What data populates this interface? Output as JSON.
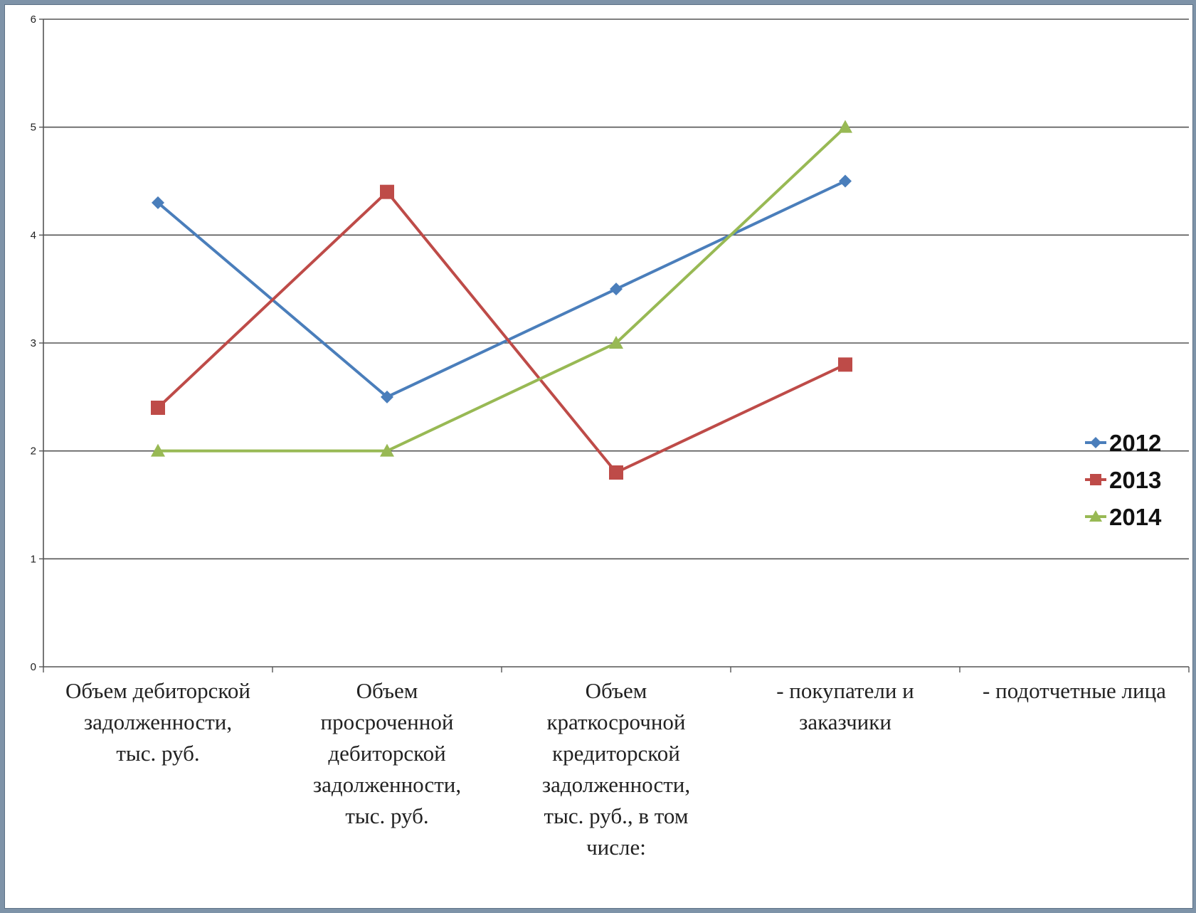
{
  "chart_data": {
    "type": "line",
    "categories": [
      [
        "Объем дебиторской",
        "задолженности,",
        "тыс. руб."
      ],
      [
        "Объем",
        "просроченной",
        "дебиторской",
        "задолженности,",
        "тыс. руб."
      ],
      [
        "Объем",
        "краткосрочной",
        "кредиторской",
        "задолженности,",
        "тыс. руб., в том",
        "числе:"
      ],
      [
        "- покупатели и",
        "заказчики"
      ],
      [
        "- подотчетные лица"
      ]
    ],
    "series": [
      {
        "name": "2012",
        "color": "#4a7ebb",
        "marker": "diamond",
        "values": [
          4.3,
          2.5,
          3.5,
          4.5,
          null
        ]
      },
      {
        "name": "2013",
        "color": "#be4b48",
        "marker": "square",
        "values": [
          2.4,
          4.4,
          1.8,
          2.8,
          null
        ]
      },
      {
        "name": "2014",
        "color": "#98b954",
        "marker": "triangle",
        "values": [
          2.0,
          2.0,
          3.0,
          5.0,
          null
        ]
      }
    ],
    "ylim": [
      0,
      6
    ],
    "yticks": [
      "0",
      "1",
      "2",
      "3",
      "4",
      "5",
      "6"
    ],
    "grid": true,
    "legend_position": "right",
    "title": "",
    "xlabel": "",
    "ylabel": ""
  }
}
